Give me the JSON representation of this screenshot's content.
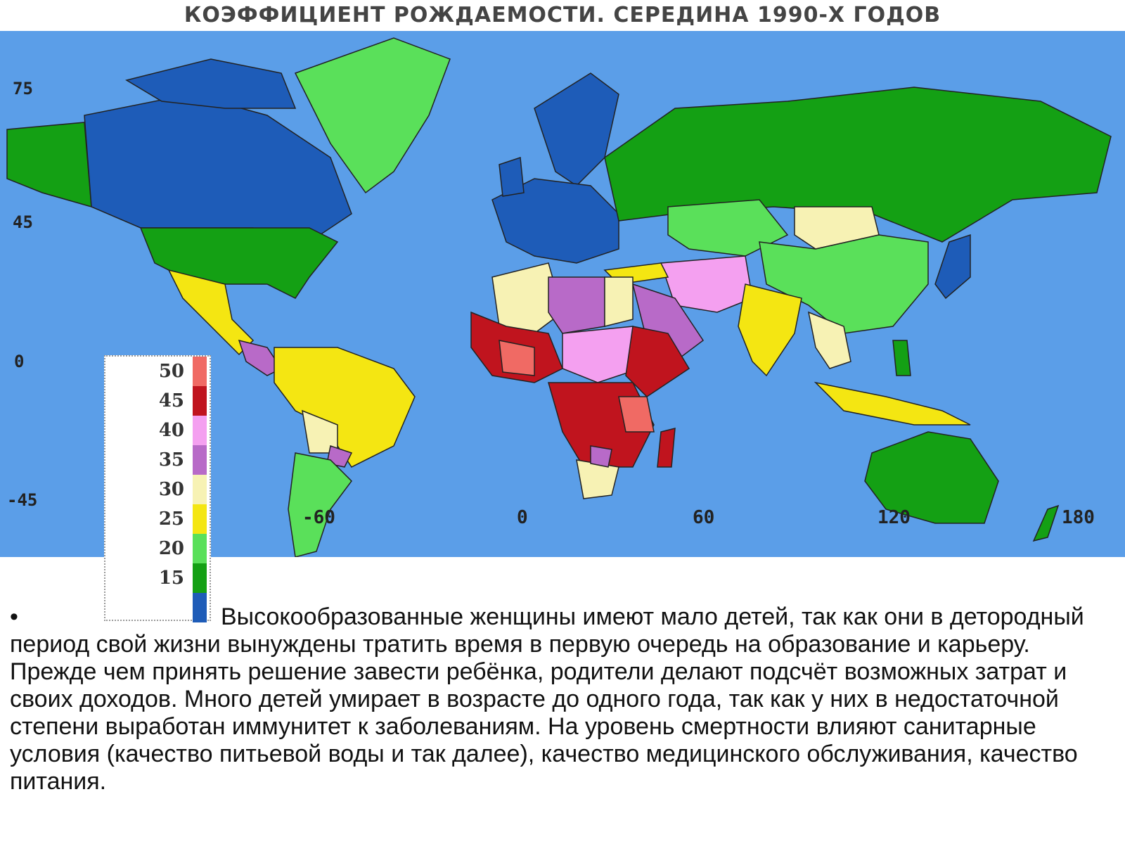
{
  "map": {
    "title": "КОЭФФИЦИЕНТ РОЖДАЕМОСТИ. СЕРЕДИНА 1990-Х ГОДОВ",
    "lat_labels": [
      "75",
      "45",
      "0",
      "-45"
    ],
    "lon_labels": [
      "-60",
      "0",
      "60",
      "120",
      "180"
    ],
    "colors": {
      "ocean": "#5b9ee8",
      "v50": "#f06a64",
      "v45": "#c0141e",
      "v40": "#f4a0f0",
      "v35": "#b86ac8",
      "v30": "#f7f2b4",
      "v25": "#f4e612",
      "v20": "#5ae05a",
      "v15": "#14a014",
      "v10": "#1e5cb8"
    }
  },
  "legend": {
    "items": [
      {
        "value": "50",
        "color": "#f06a64"
      },
      {
        "value": "45",
        "color": "#c0141e"
      },
      {
        "value": "40",
        "color": "#f4a0f0"
      },
      {
        "value": "35",
        "color": "#b86ac8"
      },
      {
        "value": "30",
        "color": "#f7f2b4"
      },
      {
        "value": "25",
        "color": "#f4e612"
      },
      {
        "value": "20",
        "color": "#5ae05a"
      },
      {
        "value": "15",
        "color": "#14a014"
      },
      {
        "value": "",
        "color": "#1e5cb8"
      }
    ]
  },
  "caption": {
    "bullet": "•",
    "text": "Высокообразованные женщины имеют мало детей, так как они в детородный период свой жизни вынуждены тратить время в первую очередь на образование и карьеру. Прежде чем принять решение завести ребёнка, родители делают подсчёт возможных затрат и своих доходов. Много детей умирает в возрасте до одного года, так как у них в недостаточной степени выработан иммунитет к заболеваниям. На уровень смертности влияют санитарные условия (качество питьевой воды и так далее), качество медицинского обслуживания, качество питания."
  }
}
